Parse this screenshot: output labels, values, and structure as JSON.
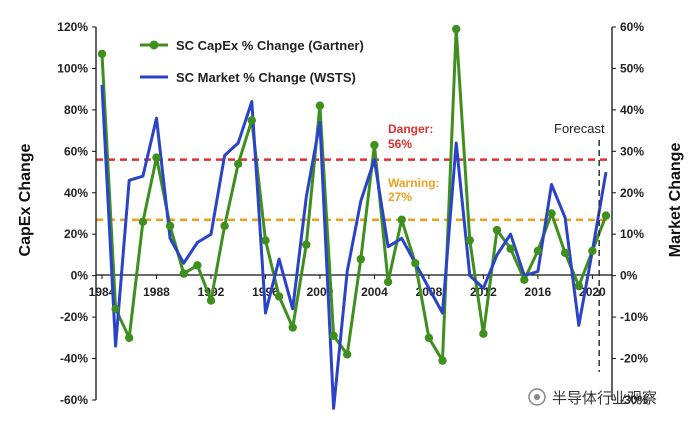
{
  "chart_data": {
    "type": "line",
    "x": [
      1984,
      1985,
      1986,
      1987,
      1988,
      1989,
      1990,
      1991,
      1992,
      1993,
      1994,
      1995,
      1996,
      1997,
      1998,
      1999,
      2000,
      2001,
      2002,
      2003,
      2004,
      2005,
      2006,
      2007,
      2008,
      2009,
      2010,
      2011,
      2012,
      2013,
      2014,
      2015,
      2016,
      2017,
      2018,
      2019,
      2020,
      2021
    ],
    "x_ticks": [
      1984,
      1988,
      1992,
      1996,
      2000,
      2004,
      2008,
      2012,
      2016,
      2020
    ],
    "series": [
      {
        "name": "SC CapEx % Change (Gartner)",
        "axis": "left",
        "color": "#3f8f1f",
        "values": [
          107,
          -16,
          -30,
          26,
          57,
          24,
          1,
          5,
          -12,
          24,
          54,
          75,
          17,
          -10,
          -25,
          15,
          82,
          -29,
          -38,
          8,
          63,
          -3,
          27,
          6,
          -30,
          -41,
          119,
          17,
          -28,
          22,
          13,
          -2,
          12,
          30,
          11,
          -5,
          12,
          29
        ]
      },
      {
        "name": "SC Market % Change (WSTS)",
        "axis": "right",
        "color": "#2a43c8",
        "values": [
          46,
          -17,
          23,
          24,
          38,
          9,
          3,
          8,
          10,
          29,
          32,
          42,
          -9,
          4,
          -8,
          19,
          37,
          -32,
          1,
          18,
          28,
          7,
          9,
          3,
          -3,
          -9,
          32,
          0,
          -3,
          5,
          10,
          0,
          1,
          22,
          14,
          -12,
          6,
          25
        ]
      }
    ],
    "left_axis": {
      "label": "CapEx Change",
      "ylim": [
        -60,
        120
      ],
      "ticks": [
        "-60%",
        "-40%",
        "-20%",
        "0%",
        "20%",
        "40%",
        "60%",
        "80%",
        "100%",
        "120%"
      ]
    },
    "right_axis": {
      "label": "Market Change",
      "ylim": [
        -30,
        60
      ],
      "ticks": [
        "-30%",
        "-20%",
        "-10%",
        "0%",
        "10%",
        "20%",
        "30%",
        "40%",
        "50%",
        "60%"
      ]
    },
    "reference_lines": [
      {
        "label": "Danger:",
        "value_label": "56%",
        "value": 56,
        "color": "#e03030"
      },
      {
        "label": "Warning:",
        "value_label": "27%",
        "value": 27,
        "color": "#f0a020"
      }
    ],
    "forecast": {
      "label": "Forecast",
      "x": 2020.5
    },
    "legend_placement": "top",
    "grid": false
  },
  "watermark": {
    "text": "半导体行业观察"
  }
}
